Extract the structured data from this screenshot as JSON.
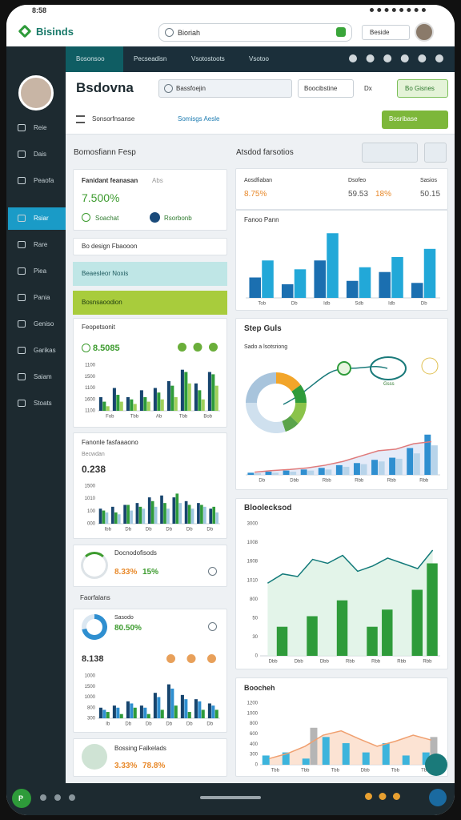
{
  "status_bar": {
    "time": "8:58"
  },
  "header": {
    "logo": "Bisinds",
    "search": "Bioriah",
    "menu": "Beside"
  },
  "sidebar": {
    "items": [
      "Reie",
      "Dais",
      "Peaofa",
      "Rsiar",
      "Rare",
      "Piea",
      "Pania",
      "Geniso",
      "Garikas",
      "Saiam",
      "Stoats"
    ],
    "active": 3
  },
  "tabs": {
    "items": [
      "Bosonsoo",
      "Pecseadisn",
      "Vsotostoots",
      "Vsotoo"
    ],
    "active": 0
  },
  "toolbar": {
    "title": "Bsdovna",
    "search": "Bassfoejin",
    "button": "Boocibstine",
    "link": "Dx",
    "action": "Bo Gisnes"
  },
  "filter": {
    "select": "Sonsorfnsanse",
    "link": "Somisgs Aesle",
    "button": "Bosribase"
  },
  "left_panel": {
    "title": "Bomosfiann Fesp",
    "summary": {
      "title": "Fanidant feanasan",
      "tag": "Abs",
      "value": "7.500%",
      "button_1": "Soachat",
      "button_2": "Rsorbonb"
    },
    "note": "Bo design Fbaooon",
    "accordion": [
      "Beaesleor Noxis",
      "Bosnsaoodion"
    ],
    "card_1": {
      "title": "Feopetsonit",
      "value": "8.5085",
      "chart": {
        "ylim": [
          0,
          100
        ],
        "bars": [
          {
            "color": "#17456e",
            "values": [
              30,
              50,
              30,
              45,
              50,
              65,
              90,
              60,
              85
            ]
          },
          {
            "color": "#2e9b3a",
            "values": [
              20,
              35,
              25,
              30,
              40,
              55,
              85,
              45,
              80
            ]
          },
          {
            "color": "#9fd05a",
            "values": [
              10,
              20,
              15,
              20,
              25,
              30,
              60,
              25,
              55
            ]
          }
        ],
        "x_labels": [
          "Fob",
          "Tbb",
          "Ab",
          "Tbb",
          "Bob"
        ],
        "y_labels": [
          "1100",
          "1500",
          "1100",
          "1600",
          "1100"
        ]
      }
    },
    "card_2": {
      "title": "Fanonle fasfaaaono",
      "subtitle": "Becwdan",
      "value": "0.238",
      "chart": {
        "ylim": [
          0,
          100
        ],
        "bars": [
          {
            "color": "#17456e",
            "values": [
              40,
              45,
              50,
              55,
              70,
              75,
              70,
              60,
              55,
              40
            ]
          },
          {
            "color": "#2e9b3a",
            "values": [
              35,
              30,
              50,
              45,
              60,
              55,
              80,
              50,
              50,
              45
            ]
          },
          {
            "color": "#9fc7e0",
            "values": [
              30,
              25,
              35,
              40,
              45,
              40,
              55,
              40,
              45,
              30
            ]
          }
        ],
        "x_labels": [
          "Ibb",
          "Db",
          "Db",
          "Db",
          "Db",
          "Db"
        ],
        "y_labels": [
          "1500",
          "1010",
          "100",
          "000"
        ]
      }
    },
    "card_3": {
      "title": "Docnodofisods",
      "value": "8.33%",
      "change": "15%"
    },
    "section": "Faorfalans",
    "card_4": {
      "label": "Sasodo",
      "value": "80.50%",
      "total": "8.138",
      "donut": {
        "values": [
          72,
          28
        ],
        "colors": [
          "#2f8fd0",
          "#dbe7f1"
        ]
      },
      "chart": {
        "ylim": [
          0,
          100
        ],
        "bars": [
          {
            "color": "#17456e",
            "values": [
              25,
              30,
              40,
              30,
              60,
              80,
              55,
              45,
              35
            ]
          },
          {
            "color": "#2f8fd0",
            "values": [
              20,
              25,
              35,
              25,
              50,
              70,
              45,
              40,
              30
            ]
          },
          {
            "color": "#2e9b3a",
            "values": [
              15,
              10,
              25,
              10,
              20,
              30,
              15,
              20,
              20
            ]
          }
        ],
        "x_labels": [
          "Ib",
          "Db",
          "Db",
          "Db",
          "Db",
          "Db"
        ],
        "y_labels": [
          "1000",
          "1500",
          "1000",
          "800",
          "300"
        ]
      }
    },
    "card_5": {
      "title": "Bossing Falkelads",
      "value": "3.33%",
      "change": "78.8%"
    }
  },
  "right_panel": {
    "title": "Atsdod farsotios",
    "kpis": [
      {
        "label": "Aosdfiaban",
        "value": "8.75%"
      },
      {
        "label": "Dsofeo",
        "value": "59.53",
        "change": "18%"
      },
      {
        "label": "Sasios",
        "value": "50.15"
      }
    ],
    "card_1": {
      "title": "Fanoo Pann",
      "chart": {
        "ylim": [
          0,
          100
        ],
        "bars": [
          {
            "color": "#1b6fb0",
            "values": [
              30,
              20,
              55,
              25,
              38,
              22
            ]
          },
          {
            "color": "#22a8d8",
            "values": [
              55,
              42,
              95,
              45,
              60,
              72
            ]
          }
        ],
        "x_labels": [
          "Tob",
          "Db",
          "Idb",
          "Sdb",
          "Idb",
          "Db"
        ]
      }
    },
    "card_2": {
      "title": "Step Guls",
      "caption": "Sado a lsotsriong",
      "node": "Gsss",
      "donut": {
        "values": [
          15,
          10,
          12,
          8,
          30,
          25
        ],
        "colors": [
          "#f2a52a",
          "#2e9b3a",
          "#8bc34a",
          "#5aa34a",
          "#cfe0ee",
          "#a8c4dc"
        ]
      },
      "chart": {
        "ylim": [
          0,
          100
        ],
        "bars": [
          {
            "color": "#2f8fd0",
            "values": [
              4,
              6,
              8,
              10,
              13,
              18,
              22,
              28,
              32,
              50,
              75
            ]
          },
          {
            "color": "#b8d4ea",
            "values": [
              3,
              4,
              6,
              8,
              10,
              15,
              20,
              25,
              30,
              40,
              55
            ]
          }
        ],
        "line": {
          "color": "#e07a7a",
          "values": [
            5,
            8,
            10,
            13,
            18,
            25,
            35,
            45,
            48,
            58,
            62
          ],
          "area": true,
          "fill": "#dfe6f6"
        },
        "x_labels": [
          "Db",
          "Dbb",
          "Rbb",
          "Rbb",
          "Rbb",
          "Rbb"
        ]
      }
    },
    "card_3": {
      "title": "Bloolecksod",
      "chart": {
        "ylim": [
          0,
          100
        ],
        "bars": [
          {
            "color": "#2e9b3a",
            "values": [
              0,
              22,
              0,
              30,
              0,
              42,
              0,
              22,
              35,
              0,
              50,
              70
            ]
          }
        ],
        "line": {
          "color": "#137a7a",
          "values": [
            55,
            62,
            60,
            73,
            70,
            76,
            64,
            68,
            74,
            70,
            66,
            80
          ],
          "area": true,
          "fill": "#dcf1e3"
        },
        "x_labels": [
          "Dbb",
          "Dbb",
          "Dbb",
          "Rbb",
          "Rbb",
          "Rbb",
          "Rbb"
        ],
        "y_labels": [
          "3000",
          "1008",
          "1608",
          "1010",
          "800",
          "50",
          "30",
          "0"
        ]
      }
    },
    "card_4": {
      "title": "Boocheh",
      "chart": {
        "ylim": [
          0,
          100
        ],
        "bars": [
          {
            "color": "#3cb4dc",
            "values": [
              15,
              20,
              10,
              45,
              35,
              20,
              35,
              15,
              20
            ]
          },
          {
            "color": "#b5b5b5",
            "values": [
              0,
              0,
              60,
              0,
              0,
              0,
              0,
              0,
              45
            ]
          }
        ],
        "line": {
          "color": "#f0a070",
          "values": [
            10,
            18,
            30,
            48,
            55,
            42,
            30,
            38,
            48,
            40
          ],
          "area": true,
          "fill": "#fbdcc8"
        },
        "x_labels": [
          "Tbb",
          "Tbb",
          "Tbb",
          "Dbb",
          "Tbb",
          "Tbb"
        ],
        "y_labels": [
          "1200",
          "1000",
          "800",
          "600",
          "400",
          "300",
          "0"
        ]
      }
    }
  },
  "bottom_nav": {
    "home": "P"
  }
}
